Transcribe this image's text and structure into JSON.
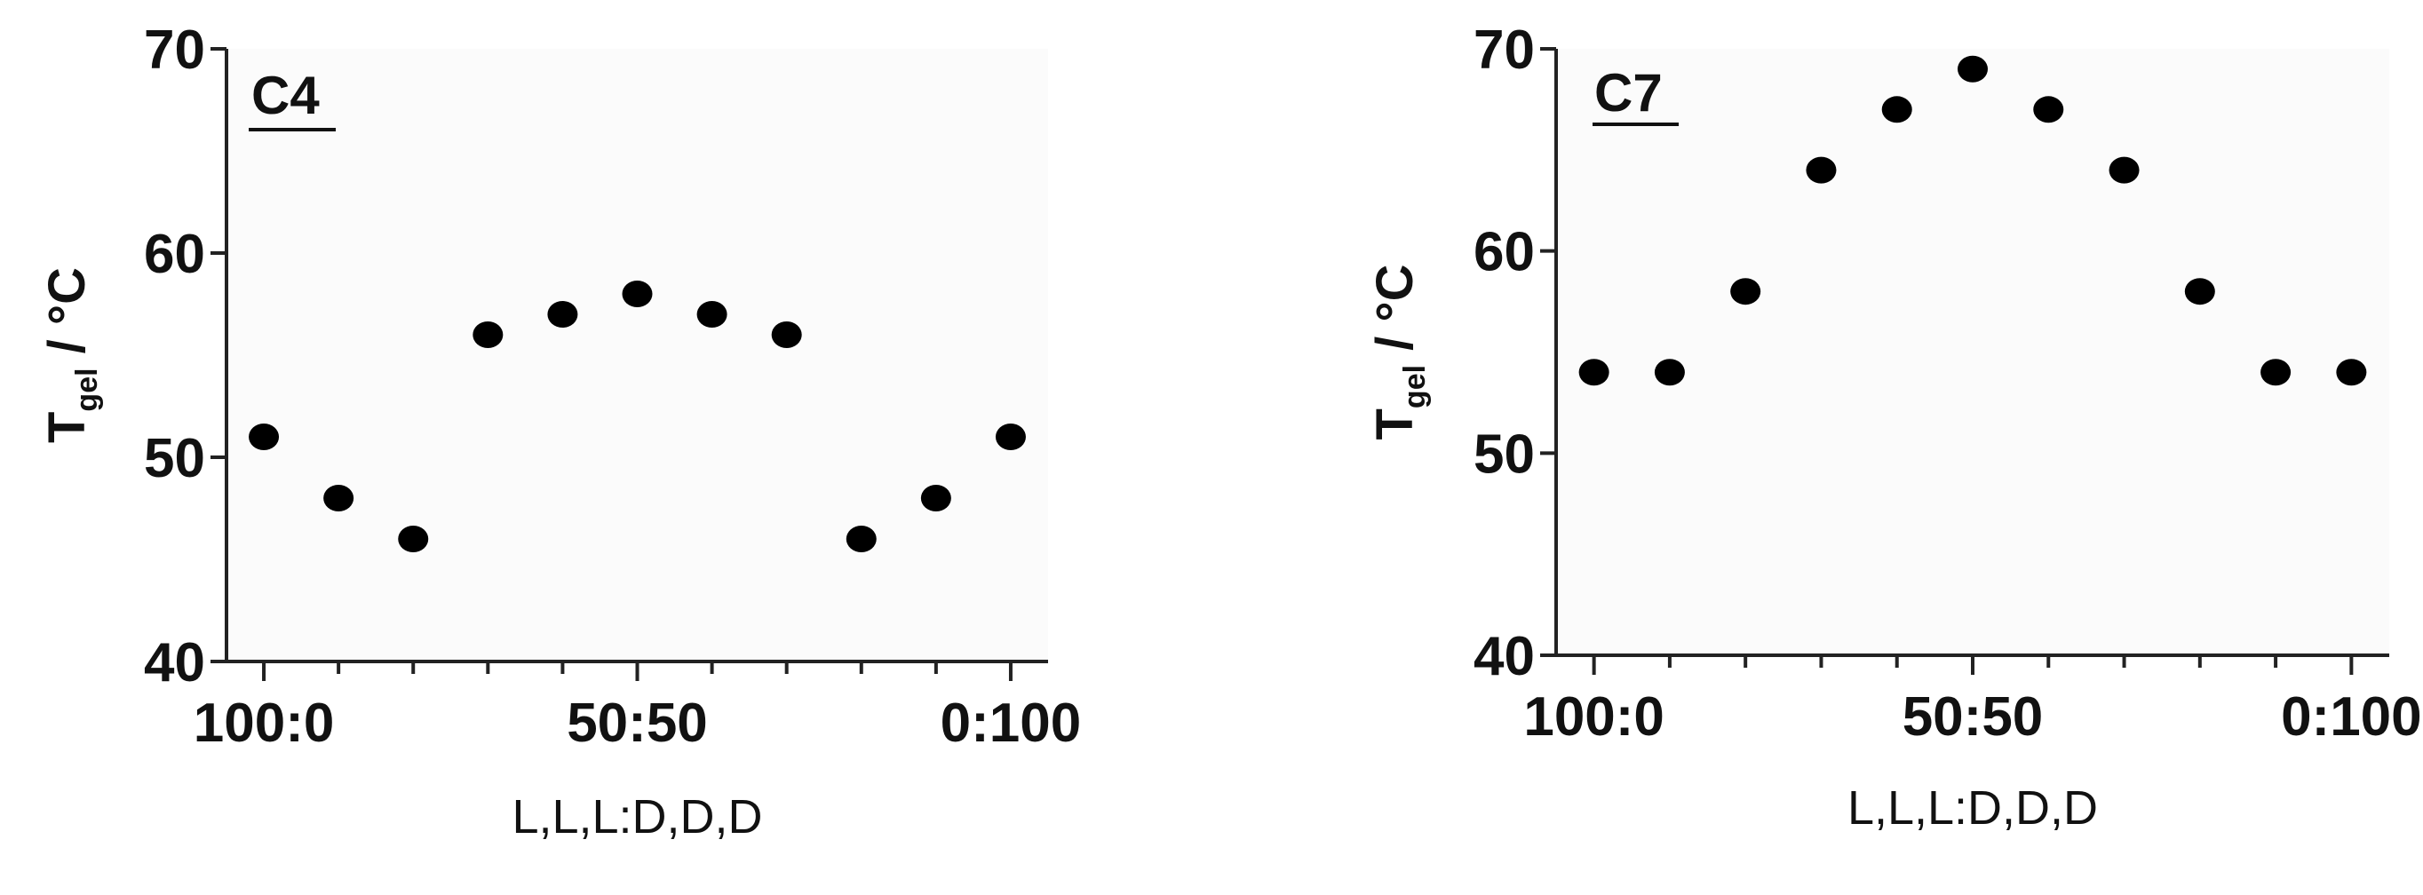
{
  "chart_data": [
    {
      "type": "scatter",
      "panel_label": "C4",
      "xlabel": "L,L,L:D,D,D",
      "ylabel": {
        "main": "T",
        "subscript": "gel",
        "unit": " / °C"
      },
      "ylim": [
        40,
        70
      ],
      "yticks": [
        "40",
        "50",
        "60",
        "70"
      ],
      "xlim": [
        -5,
        105
      ],
      "xtick_labels": [
        {
          "x": 0,
          "label": "100:0"
        },
        {
          "x": 50,
          "label": "50:50"
        },
        {
          "x": 100,
          "label": "0:100"
        }
      ],
      "minor_xticks": [
        10,
        20,
        30,
        40,
        60,
        70,
        80,
        90
      ],
      "grid": false,
      "legend": "none",
      "marker_color": "#000000",
      "points": [
        {
          "x": 0,
          "y": 51
        },
        {
          "x": 10,
          "y": 48
        },
        {
          "x": 20,
          "y": 46
        },
        {
          "x": 30,
          "y": 56
        },
        {
          "x": 40,
          "y": 57
        },
        {
          "x": 50,
          "y": 58
        },
        {
          "x": 60,
          "y": 57
        },
        {
          "x": 70,
          "y": 56
        },
        {
          "x": 80,
          "y": 46
        },
        {
          "x": 90,
          "y": 48
        },
        {
          "x": 100,
          "y": 51
        }
      ]
    },
    {
      "type": "scatter",
      "panel_label": "C7",
      "xlabel": "L,L,L:D,D,D",
      "ylabel": {
        "main": "T",
        "subscript": "gel",
        "unit": " / °C"
      },
      "ylim": [
        40,
        70
      ],
      "yticks": [
        "40",
        "50",
        "60",
        "70"
      ],
      "xlim": [
        -5,
        105
      ],
      "xtick_labels": [
        {
          "x": 0,
          "label": "100:0"
        },
        {
          "x": 50,
          "label": "50:50"
        },
        {
          "x": 100,
          "label": "0:100"
        }
      ],
      "minor_xticks": [
        10,
        20,
        30,
        40,
        60,
        70,
        80,
        90
      ],
      "grid": false,
      "legend": "none",
      "marker_color": "#000000",
      "points": [
        {
          "x": 0,
          "y": 54
        },
        {
          "x": 10,
          "y": 54
        },
        {
          "x": 20,
          "y": 58
        },
        {
          "x": 30,
          "y": 64
        },
        {
          "x": 40,
          "y": 67
        },
        {
          "x": 50,
          "y": 69
        },
        {
          "x": 60,
          "y": 67
        },
        {
          "x": 70,
          "y": 64
        },
        {
          "x": 80,
          "y": 58
        },
        {
          "x": 90,
          "y": 54
        },
        {
          "x": 100,
          "y": 54
        }
      ]
    }
  ]
}
